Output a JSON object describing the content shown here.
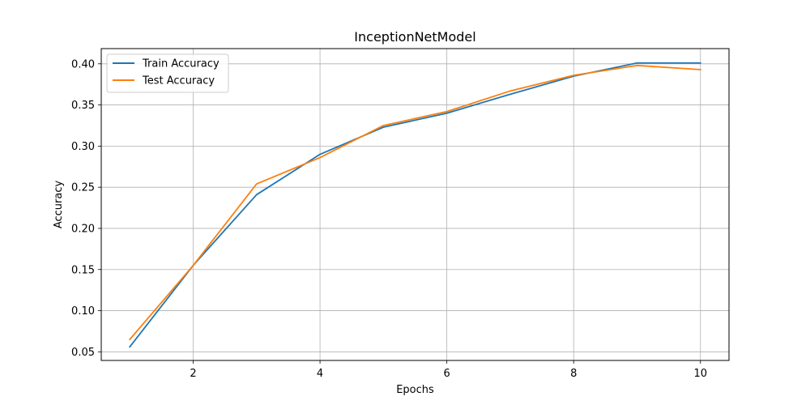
{
  "chart_data": {
    "type": "line",
    "title": "InceptionNetModel",
    "xlabel": "Epochs",
    "ylabel": "Accuracy",
    "x": [
      1,
      2,
      3,
      4,
      5,
      6,
      7,
      8,
      9,
      10
    ],
    "xlim": [
      0.55,
      10.45
    ],
    "ylim": [
      0.0395,
      0.4185
    ],
    "xticks": [
      2,
      4,
      6,
      8,
      10
    ],
    "yticks": [
      0.05,
      0.1,
      0.15,
      0.2,
      0.25,
      0.3,
      0.35,
      0.4
    ],
    "xtick_labels": [
      "2",
      "4",
      "6",
      "8",
      "10"
    ],
    "ytick_labels": [
      "0.05",
      "0.10",
      "0.15",
      "0.20",
      "0.25",
      "0.30",
      "0.35",
      "0.40"
    ],
    "grid": true,
    "legend": "top-left",
    "series": [
      {
        "name": "Train Accuracy",
        "color": "#1f77b4",
        "values": [
          0.056,
          0.155,
          0.241,
          0.29,
          0.323,
          0.34,
          0.363,
          0.385,
          0.401,
          0.401
        ]
      },
      {
        "name": "Test Accuracy",
        "color": "#ff7f0e",
        "values": [
          0.065,
          0.155,
          0.254,
          0.286,
          0.325,
          0.342,
          0.367,
          0.386,
          0.398,
          0.393
        ]
      }
    ]
  }
}
